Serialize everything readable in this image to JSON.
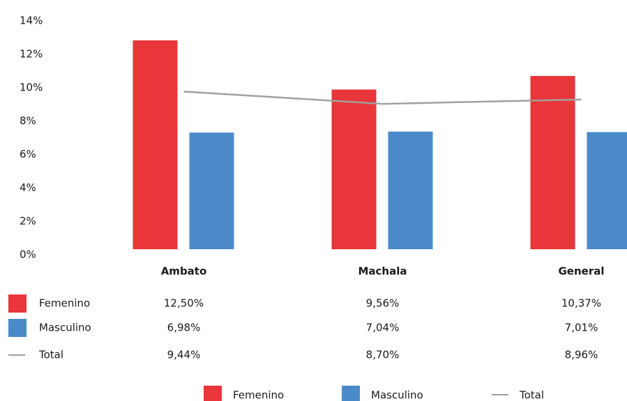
{
  "chart_data": {
    "type": "bar",
    "categories": [
      "Ambato",
      "Machala",
      "General"
    ],
    "series": [
      {
        "name": "Femenino",
        "type": "bar",
        "color": "#e8363a",
        "values": [
          12.5,
          9.56,
          10.37
        ],
        "value_labels": [
          "12,50%",
          "9,56%",
          "10,37%"
        ]
      },
      {
        "name": "Masculino",
        "type": "bar",
        "color": "#4a8ac9",
        "values": [
          6.98,
          7.04,
          7.01
        ],
        "value_labels": [
          "6,98%",
          "7,04%",
          "7,01%"
        ]
      },
      {
        "name": "Total",
        "type": "line",
        "color": "#a0a0a0",
        "values": [
          9.44,
          8.7,
          8.96
        ],
        "value_labels": [
          "9,44%",
          "8,70%",
          "8,96%"
        ]
      }
    ],
    "ylim": [
      0,
      14
    ],
    "yticks": [
      {
        "value": 0,
        "label": "0%"
      },
      {
        "value": 2,
        "label": "2%"
      },
      {
        "value": 4,
        "label": "4%"
      },
      {
        "value": 6,
        "label": "6%"
      },
      {
        "value": 8,
        "label": "8%"
      },
      {
        "value": 10,
        "label": "10%"
      },
      {
        "value": 12,
        "label": "12%"
      },
      {
        "value": 14,
        "label": "14%"
      }
    ],
    "grid": false
  }
}
